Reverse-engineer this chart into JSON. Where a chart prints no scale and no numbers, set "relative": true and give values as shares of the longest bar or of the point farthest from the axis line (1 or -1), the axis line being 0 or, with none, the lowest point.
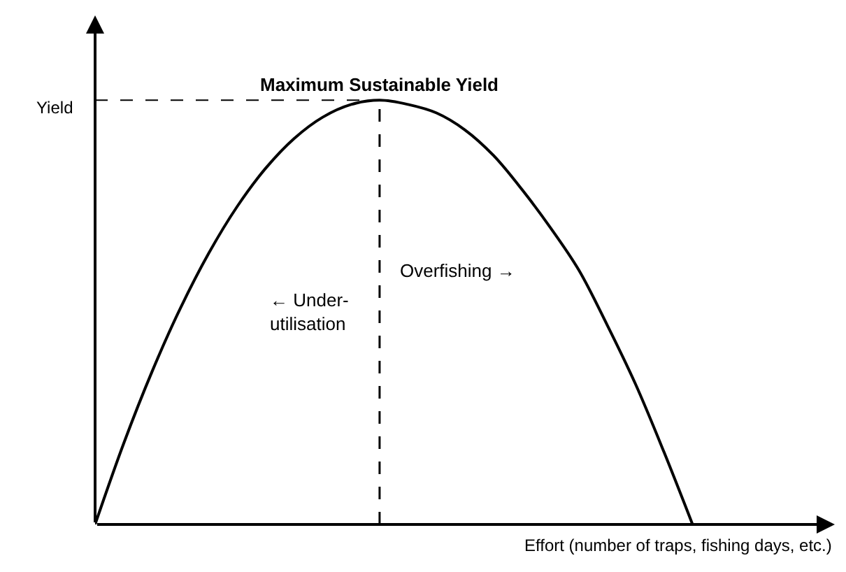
{
  "chart_data": {
    "type": "line",
    "relative": true,
    "xlabel": "Effort (number of traps, fishing days, etc.)",
    "ylabel": "Yield",
    "categories": [
      null,
      null,
      null,
      null,
      null,
      null,
      null,
      null,
      null,
      null,
      null,
      null,
      null,
      null,
      null,
      null,
      null,
      null,
      null,
      null,
      null,
      null,
      null,
      null,
      null,
      null,
      null
    ],
    "series": [
      {
        "color": "#000000",
        "values": [
          0,
          0.19,
          0.36,
          0.51,
          0.64,
          0.75,
          0.84,
          0.91,
          0.96,
          0.99,
          1,
          0.99,
          0.97,
          0.93,
          0.87,
          0.79,
          0.7,
          0.6,
          0.47,
          0.33,
          0.17,
          0,
          null,
          null,
          null,
          null,
          null
        ]
      }
    ],
    "ref_lines": [
      {
        "axis": "y",
        "value": 1,
        "color": "#000000",
        "line_style": "dashed"
      }
    ],
    "annotations": [
      "Maximum Sustainable Yield",
      "← Under-\nutilisation",
      "Overfishing →"
    ],
    "marker": "none",
    "line_style": "solid"
  }
}
